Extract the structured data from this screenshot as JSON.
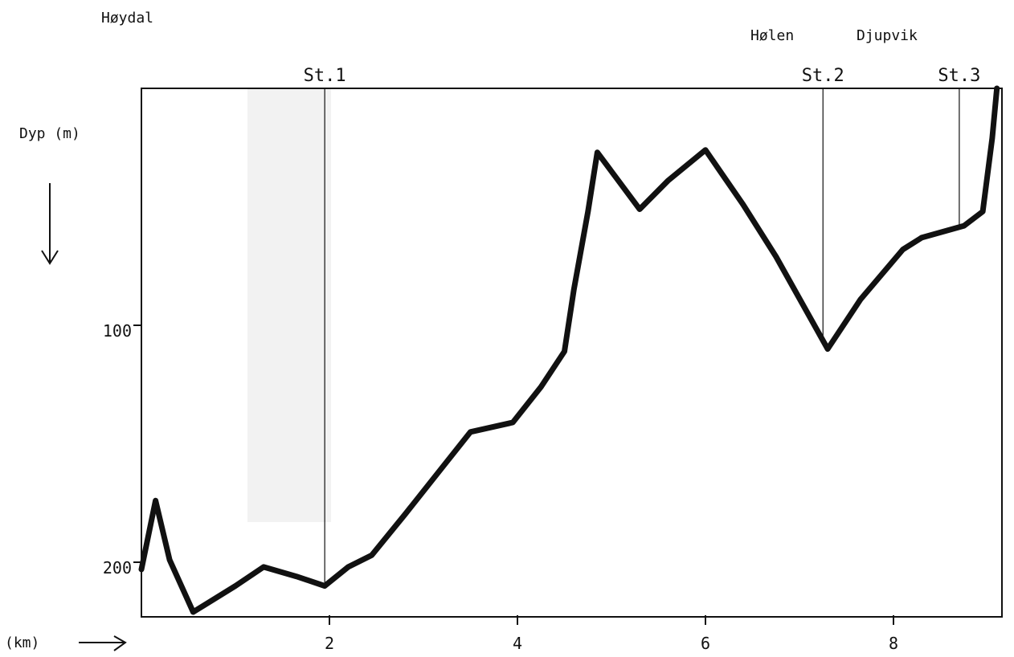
{
  "chart_data": {
    "type": "line",
    "title": "",
    "xlabel": "(km)",
    "ylabel": "Dyp (m)",
    "xlim": [
      0,
      9.1
    ],
    "ylim": [
      0,
      223
    ],
    "y_inverted": true,
    "grid": false,
    "x_ticks": [
      "2",
      "4",
      "6",
      "8"
    ],
    "y_ticks": [
      "100",
      "200"
    ],
    "series": [
      {
        "x": [
          0,
          0.15,
          0.3,
          0.55,
          1.0,
          1.3,
          1.65,
          1.95,
          2.2,
          2.45,
          2.8,
          3.2,
          3.5,
          3.95,
          4.25,
          4.5,
          4.6,
          4.75,
          4.85,
          5.3,
          5.6,
          6.0,
          6.4,
          6.75,
          7.3,
          7.65,
          8.1,
          8.3,
          8.75,
          8.95,
          9.05,
          9.1
        ],
        "y": [
          203,
          174,
          199,
          221,
          210,
          202,
          206,
          210,
          202,
          197,
          180,
          160,
          145,
          141,
          126,
          111,
          85,
          52,
          27,
          51,
          39,
          26,
          49,
          71,
          110,
          89,
          68,
          63,
          58,
          52,
          21,
          0
        ]
      }
    ],
    "stations": [
      {
        "label": "St.1",
        "x": 1.95
      },
      {
        "label": "St.2",
        "x": 7.25
      },
      {
        "label": "St.3",
        "x": 8.7
      }
    ],
    "places": [
      "Høydal",
      "Hølen",
      "Djupvik"
    ]
  },
  "colors": {
    "line": "#111111",
    "axis": "#111111",
    "shade": "#f2f2f2"
  }
}
